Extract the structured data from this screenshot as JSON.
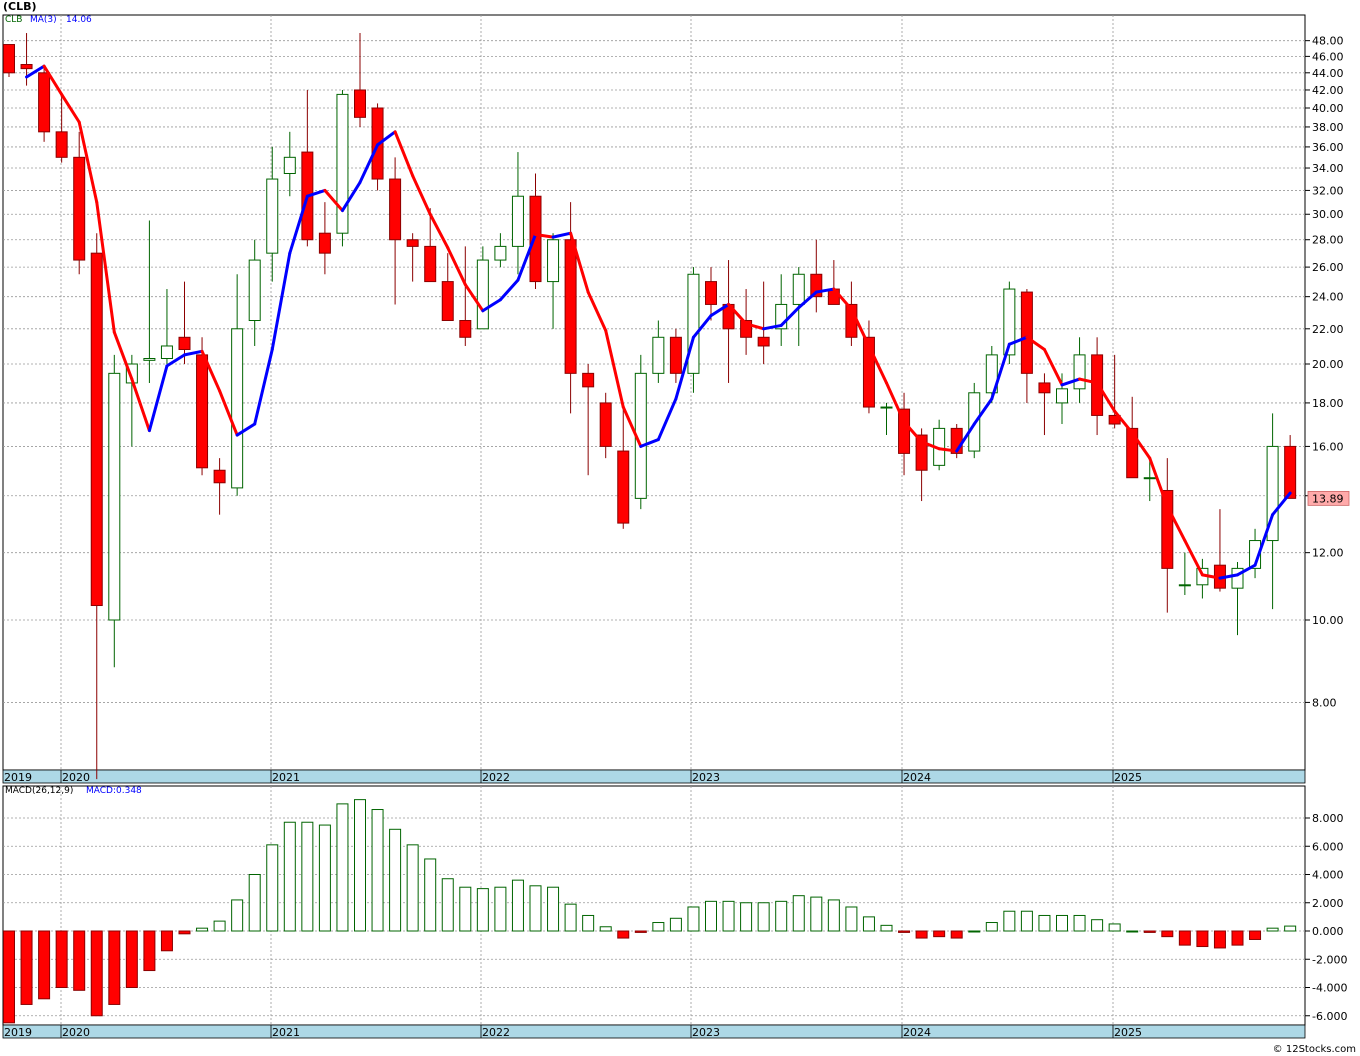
{
  "title": "(CLB)",
  "footer": "© 12Stocks.com",
  "colors": {
    "up_fill": "#ffffff",
    "up_stroke": "#006400",
    "down_fill": "#ff0000",
    "down_stroke": "#8b0000",
    "ma_up": "#0000ff",
    "ma_down": "#ff0000",
    "grid": "#999999",
    "band": "#add8e6",
    "last_box": "#ffaaaa"
  },
  "chart_data": [
    {
      "type": "candlestick",
      "scale": "log",
      "legend": {
        "symbol": "CLB",
        "ma_label": "MA(3)",
        "ma_value": "14.06"
      },
      "last_price_label": "13.89",
      "yticks": [
        "8.00",
        "10.00",
        "12.00",
        "14.00",
        "16.00",
        "18.00",
        "20.00",
        "22.00",
        "24.00",
        "26.00",
        "28.00",
        "30.00",
        "32.00",
        "34.00",
        "36.00",
        "38.00",
        "40.00",
        "42.00",
        "44.00",
        "46.00",
        "48.00"
      ],
      "year_labels": [
        "2019",
        "2020",
        "2021",
        "2022",
        "2023",
        "2024",
        "2025"
      ],
      "candles": [
        [
          47.5,
          47.5,
          43.5,
          44.0
        ],
        [
          45.0,
          49.0,
          42.5,
          44.5
        ],
        [
          44.0,
          45.0,
          36.5,
          37.5
        ],
        [
          37.5,
          41.5,
          34.5,
          35.0
        ],
        [
          35.0,
          37.5,
          25.5,
          26.5
        ],
        [
          27.0,
          28.5,
          6.5,
          10.4
        ],
        [
          10.0,
          20.5,
          8.8,
          19.5
        ],
        [
          19.0,
          20.5,
          16.0,
          20.0
        ],
        [
          20.2,
          29.5,
          19.0,
          20.3
        ],
        [
          20.3,
          24.5,
          20.0,
          21.0
        ],
        [
          21.5,
          25.0,
          20.0,
          20.8
        ],
        [
          20.5,
          21.5,
          14.8,
          15.1
        ],
        [
          15.0,
          15.5,
          13.3,
          14.5
        ],
        [
          14.3,
          25.5,
          14.0,
          22.0
        ],
        [
          22.5,
          28.0,
          21.0,
          26.5
        ],
        [
          27.0,
          36.0,
          25.0,
          33.0
        ],
        [
          33.5,
          37.5,
          31.5,
          35.0
        ],
        [
          35.5,
          42.0,
          27.5,
          28.0
        ],
        [
          28.5,
          31.0,
          25.5,
          27.0
        ],
        [
          28.5,
          42.0,
          27.5,
          41.5
        ],
        [
          42.0,
          49.0,
          38.0,
          39.0
        ],
        [
          40.0,
          40.5,
          32.0,
          33.0
        ],
        [
          33.0,
          35.0,
          23.5,
          28.0
        ],
        [
          28.0,
          28.5,
          25.0,
          27.5
        ],
        [
          27.5,
          30.5,
          25.0,
          25.0
        ],
        [
          25.0,
          27.0,
          22.5,
          22.5
        ],
        [
          22.5,
          27.5,
          21.0,
          21.5
        ],
        [
          22.0,
          27.5,
          22.0,
          26.5
        ],
        [
          26.5,
          28.5,
          26.0,
          27.5
        ],
        [
          27.5,
          35.5,
          25.5,
          31.5
        ],
        [
          31.5,
          33.5,
          24.5,
          25.0
        ],
        [
          25.0,
          28.5,
          22.0,
          28.0
        ],
        [
          28.0,
          31.0,
          17.5,
          19.5
        ],
        [
          19.5,
          20.0,
          14.8,
          18.8
        ],
        [
          18.0,
          18.5,
          15.5,
          16.0
        ],
        [
          15.8,
          18.0,
          12.8,
          13.0
        ],
        [
          13.9,
          20.5,
          13.5,
          19.5
        ],
        [
          19.5,
          22.5,
          19.0,
          21.5
        ],
        [
          21.5,
          22.0,
          19.0,
          19.5
        ],
        [
          19.5,
          26.0,
          18.5,
          25.5
        ],
        [
          25.0,
          26.0,
          22.5,
          23.5
        ],
        [
          23.5,
          26.5,
          19.0,
          22.0
        ],
        [
          22.5,
          24.5,
          20.5,
          21.5
        ],
        [
          21.5,
          25.0,
          20.0,
          21.0
        ],
        [
          22.0,
          25.5,
          21.0,
          23.5
        ],
        [
          23.5,
          26.0,
          21.0,
          25.5
        ],
        [
          25.5,
          28.0,
          23.0,
          24.0
        ],
        [
          24.5,
          26.5,
          23.5,
          23.5
        ],
        [
          23.5,
          25.0,
          21.0,
          21.5
        ],
        [
          21.5,
          22.5,
          17.5,
          17.8
        ],
        [
          17.8,
          18.0,
          16.5,
          17.8
        ],
        [
          17.7,
          18.5,
          14.8,
          15.7
        ],
        [
          16.5,
          16.8,
          13.8,
          15.0
        ],
        [
          15.2,
          17.2,
          15.0,
          16.8
        ],
        [
          16.8,
          17.0,
          15.5,
          15.7
        ],
        [
          15.8,
          19.0,
          15.5,
          18.5
        ],
        [
          18.5,
          21.0,
          18.0,
          20.5
        ],
        [
          20.5,
          25.0,
          20.0,
          24.5
        ],
        [
          24.3,
          24.5,
          18.0,
          19.5
        ],
        [
          19.0,
          19.5,
          16.5,
          18.5
        ],
        [
          18.0,
          19.5,
          17.0,
          18.7
        ],
        [
          18.7,
          21.5,
          18.0,
          20.5
        ],
        [
          20.5,
          21.5,
          16.5,
          17.4
        ],
        [
          17.4,
          20.5,
          16.8,
          17.0
        ],
        [
          16.8,
          18.3,
          14.7,
          14.7
        ],
        [
          14.7,
          15.5,
          13.8,
          14.7
        ],
        [
          14.2,
          15.5,
          10.2,
          11.5
        ],
        [
          11.0,
          12.0,
          10.7,
          11.0
        ],
        [
          11.0,
          11.8,
          10.6,
          11.5
        ],
        [
          11.6,
          13.5,
          10.8,
          10.9
        ],
        [
          10.9,
          11.7,
          9.6,
          11.5
        ],
        [
          11.5,
          12.8,
          11.2,
          12.4
        ],
        [
          12.4,
          17.5,
          10.3,
          16.0
        ],
        [
          16.0,
          16.5,
          13.9,
          13.9
        ]
      ],
      "ma3": [
        null,
        43.5,
        44.8,
        41.5,
        38.5,
        31.0,
        21.8,
        19.2,
        16.7,
        19.9,
        20.5,
        20.7,
        18.6,
        16.5,
        17.0,
        20.8,
        27.0,
        31.5,
        32.0,
        30.3,
        32.7,
        36.2,
        37.5,
        33.3,
        30.0,
        27.4,
        24.8,
        23.1,
        23.8,
        25.1,
        28.4,
        28.2,
        28.5,
        24.3,
        21.9,
        17.8,
        16.0,
        16.3,
        18.2,
        21.5,
        22.8,
        23.5,
        22.3,
        22.0,
        22.2,
        23.3,
        24.3,
        24.5,
        23.2,
        21.0,
        19.0,
        17.1,
        16.2,
        15.9,
        15.8,
        17.0,
        18.2,
        21.1,
        21.5,
        20.8,
        18.9,
        19.2,
        19.0,
        17.6,
        16.6,
        15.5,
        13.6,
        12.4,
        11.3,
        11.2,
        11.3,
        11.6,
        13.3,
        14.1
      ],
      "macd_yticks": [
        "-6.000",
        "-4.000",
        "-2.000",
        "0.000",
        "2.000",
        "4.000",
        "6.000",
        "8.000"
      ],
      "macd_legend": {
        "label": "MACD(26,12,9)",
        "value_label": "MACD:0.348"
      },
      "macd": [
        -6.5,
        -5.2,
        -4.8,
        -4.0,
        -4.2,
        -6.0,
        -5.2,
        -4.0,
        -2.8,
        -1.4,
        -0.2,
        0.2,
        0.7,
        2.2,
        4.0,
        6.1,
        7.7,
        7.7,
        7.5,
        9.0,
        9.3,
        8.6,
        7.2,
        6.1,
        5.1,
        3.7,
        3.1,
        3.0,
        3.1,
        3.6,
        3.2,
        3.1,
        1.9,
        1.1,
        0.3,
        -0.5,
        -0.1,
        0.6,
        0.9,
        1.7,
        2.1,
        2.1,
        2.0,
        2.0,
        2.1,
        2.5,
        2.4,
        2.2,
        1.7,
        1.0,
        0.4,
        -0.1,
        -0.5,
        -0.4,
        -0.5,
        0.0,
        0.6,
        1.4,
        1.4,
        1.1,
        1.1,
        1.1,
        0.8,
        0.5,
        0.0,
        -0.1,
        -0.4,
        -1.0,
        -1.1,
        -1.2,
        -1.0,
        -0.6,
        0.2,
        0.348
      ]
    }
  ]
}
